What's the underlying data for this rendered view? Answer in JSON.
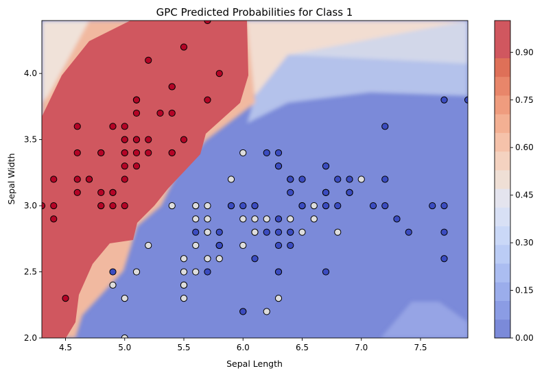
{
  "chart_data": {
    "type": "scatter",
    "title": "GPC Predicted Probabilities for Class 1",
    "xlabel": "Sepal Length",
    "ylabel": "Sepal Width",
    "xlim": [
      4.3,
      7.9
    ],
    "ylim": [
      2.0,
      4.4
    ],
    "xticks": [
      "4.5",
      "5.0",
      "5.5",
      "6.0",
      "6.5",
      "7.0",
      "7.5"
    ],
    "yticks": [
      "2.0",
      "2.5",
      "3.0",
      "3.5",
      "4.0"
    ],
    "colormap": "coolwarm",
    "background": "filled probability contour for class 1",
    "colorbar": {
      "ticks": [
        "0.00",
        "0.15",
        "0.30",
        "0.45",
        "0.60",
        "0.75",
        "0.90"
      ],
      "range": [
        0,
        1
      ]
    },
    "series": [
      {
        "color": "#b40426",
        "points": [
          [
            5.1,
            3.5
          ],
          [
            4.9,
            3.0
          ],
          [
            4.7,
            3.2
          ],
          [
            4.6,
            3.1
          ],
          [
            5.0,
            3.6
          ],
          [
            5.4,
            3.9
          ],
          [
            4.6,
            3.4
          ],
          [
            5.0,
            3.4
          ],
          [
            4.4,
            2.9
          ],
          [
            4.9,
            3.1
          ],
          [
            5.4,
            3.7
          ],
          [
            4.8,
            3.4
          ],
          [
            4.8,
            3.0
          ],
          [
            4.3,
            3.0
          ],
          [
            5.8,
            4.0
          ],
          [
            5.7,
            4.4
          ],
          [
            5.4,
            3.9
          ],
          [
            5.1,
            3.5
          ],
          [
            5.7,
            3.8
          ],
          [
            5.1,
            3.8
          ],
          [
            5.4,
            3.4
          ],
          [
            5.1,
            3.7
          ],
          [
            4.6,
            3.6
          ],
          [
            5.1,
            3.3
          ],
          [
            4.8,
            3.4
          ],
          [
            5.0,
            3.0
          ],
          [
            5.0,
            3.4
          ],
          [
            5.2,
            3.5
          ],
          [
            5.2,
            3.4
          ],
          [
            4.7,
            3.2
          ],
          [
            4.8,
            3.1
          ],
          [
            5.4,
            3.4
          ],
          [
            5.2,
            4.1
          ],
          [
            5.5,
            4.2
          ],
          [
            4.9,
            3.1
          ],
          [
            5.0,
            3.2
          ],
          [
            5.5,
            3.5
          ],
          [
            4.9,
            3.6
          ],
          [
            4.4,
            3.0
          ],
          [
            5.1,
            3.4
          ],
          [
            5.0,
            3.5
          ],
          [
            4.5,
            2.3
          ],
          [
            4.4,
            3.2
          ],
          [
            5.0,
            3.5
          ],
          [
            5.1,
            3.8
          ],
          [
            4.8,
            3.0
          ],
          [
            5.1,
            3.8
          ],
          [
            4.6,
            3.2
          ],
          [
            5.3,
            3.7
          ],
          [
            5.0,
            3.3
          ]
        ]
      },
      {
        "color": "#dddddd",
        "points": [
          [
            7.0,
            3.2
          ],
          [
            6.4,
            3.2
          ],
          [
            6.9,
            3.1
          ],
          [
            5.5,
            2.3
          ],
          [
            6.5,
            2.8
          ],
          [
            5.7,
            2.8
          ],
          [
            6.3,
            3.3
          ],
          [
            4.9,
            2.4
          ],
          [
            6.6,
            2.9
          ],
          [
            5.2,
            2.7
          ],
          [
            5.0,
            2.0
          ],
          [
            5.9,
            3.0
          ],
          [
            6.0,
            2.2
          ],
          [
            6.1,
            2.9
          ],
          [
            5.6,
            2.9
          ],
          [
            6.7,
            3.1
          ],
          [
            5.6,
            3.0
          ],
          [
            5.8,
            2.7
          ],
          [
            6.2,
            2.2
          ],
          [
            5.6,
            2.5
          ],
          [
            5.9,
            3.2
          ],
          [
            6.1,
            2.8
          ],
          [
            6.3,
            2.5
          ],
          [
            6.1,
            2.8
          ],
          [
            6.4,
            2.9
          ],
          [
            6.6,
            3.0
          ],
          [
            6.8,
            2.8
          ],
          [
            6.7,
            3.0
          ],
          [
            6.0,
            2.9
          ],
          [
            5.7,
            2.6
          ],
          [
            5.5,
            2.4
          ],
          [
            5.5,
            2.4
          ],
          [
            5.8,
            2.7
          ],
          [
            6.0,
            2.7
          ],
          [
            5.4,
            3.0
          ],
          [
            6.0,
            3.4
          ],
          [
            6.7,
            3.1
          ],
          [
            6.3,
            2.3
          ],
          [
            5.6,
            3.0
          ],
          [
            5.5,
            2.5
          ],
          [
            5.5,
            2.6
          ],
          [
            6.1,
            3.0
          ],
          [
            5.8,
            2.6
          ],
          [
            5.0,
            2.3
          ],
          [
            5.6,
            2.7
          ],
          [
            5.7,
            3.0
          ],
          [
            5.7,
            2.9
          ],
          [
            6.2,
            2.9
          ],
          [
            5.1,
            2.5
          ],
          [
            5.7,
            2.8
          ]
        ]
      },
      {
        "color": "#3b4cc0",
        "points": [
          [
            6.3,
            3.3
          ],
          [
            5.8,
            2.7
          ],
          [
            7.1,
            3.0
          ],
          [
            6.3,
            2.9
          ],
          [
            6.5,
            3.0
          ],
          [
            7.6,
            3.0
          ],
          [
            4.9,
            2.5
          ],
          [
            7.3,
            2.9
          ],
          [
            6.7,
            2.5
          ],
          [
            7.2,
            3.6
          ],
          [
            6.5,
            3.2
          ],
          [
            6.4,
            2.7
          ],
          [
            6.8,
            3.0
          ],
          [
            5.7,
            2.5
          ],
          [
            5.8,
            2.8
          ],
          [
            6.4,
            3.2
          ],
          [
            6.5,
            3.0
          ],
          [
            7.7,
            3.8
          ],
          [
            7.7,
            2.6
          ],
          [
            6.0,
            2.2
          ],
          [
            6.9,
            3.2
          ],
          [
            5.6,
            2.8
          ],
          [
            7.7,
            2.8
          ],
          [
            6.3,
            2.7
          ],
          [
            6.7,
            3.3
          ],
          [
            7.2,
            3.2
          ],
          [
            6.2,
            2.8
          ],
          [
            6.1,
            3.0
          ],
          [
            6.4,
            2.8
          ],
          [
            7.2,
            3.0
          ],
          [
            7.4,
            2.8
          ],
          [
            7.9,
            3.8
          ],
          [
            6.4,
            2.8
          ],
          [
            6.3,
            2.8
          ],
          [
            6.1,
            2.6
          ],
          [
            7.7,
            3.0
          ],
          [
            6.3,
            3.4
          ],
          [
            6.4,
            3.1
          ],
          [
            6.0,
            3.0
          ],
          [
            6.9,
            3.1
          ],
          [
            6.7,
            3.1
          ],
          [
            6.9,
            3.1
          ],
          [
            5.8,
            2.7
          ],
          [
            6.8,
            3.2
          ],
          [
            6.7,
            3.3
          ],
          [
            6.7,
            3.0
          ],
          [
            6.3,
            2.5
          ],
          [
            6.5,
            3.0
          ],
          [
            6.2,
            3.4
          ],
          [
            5.9,
            3.0
          ]
        ]
      }
    ]
  }
}
